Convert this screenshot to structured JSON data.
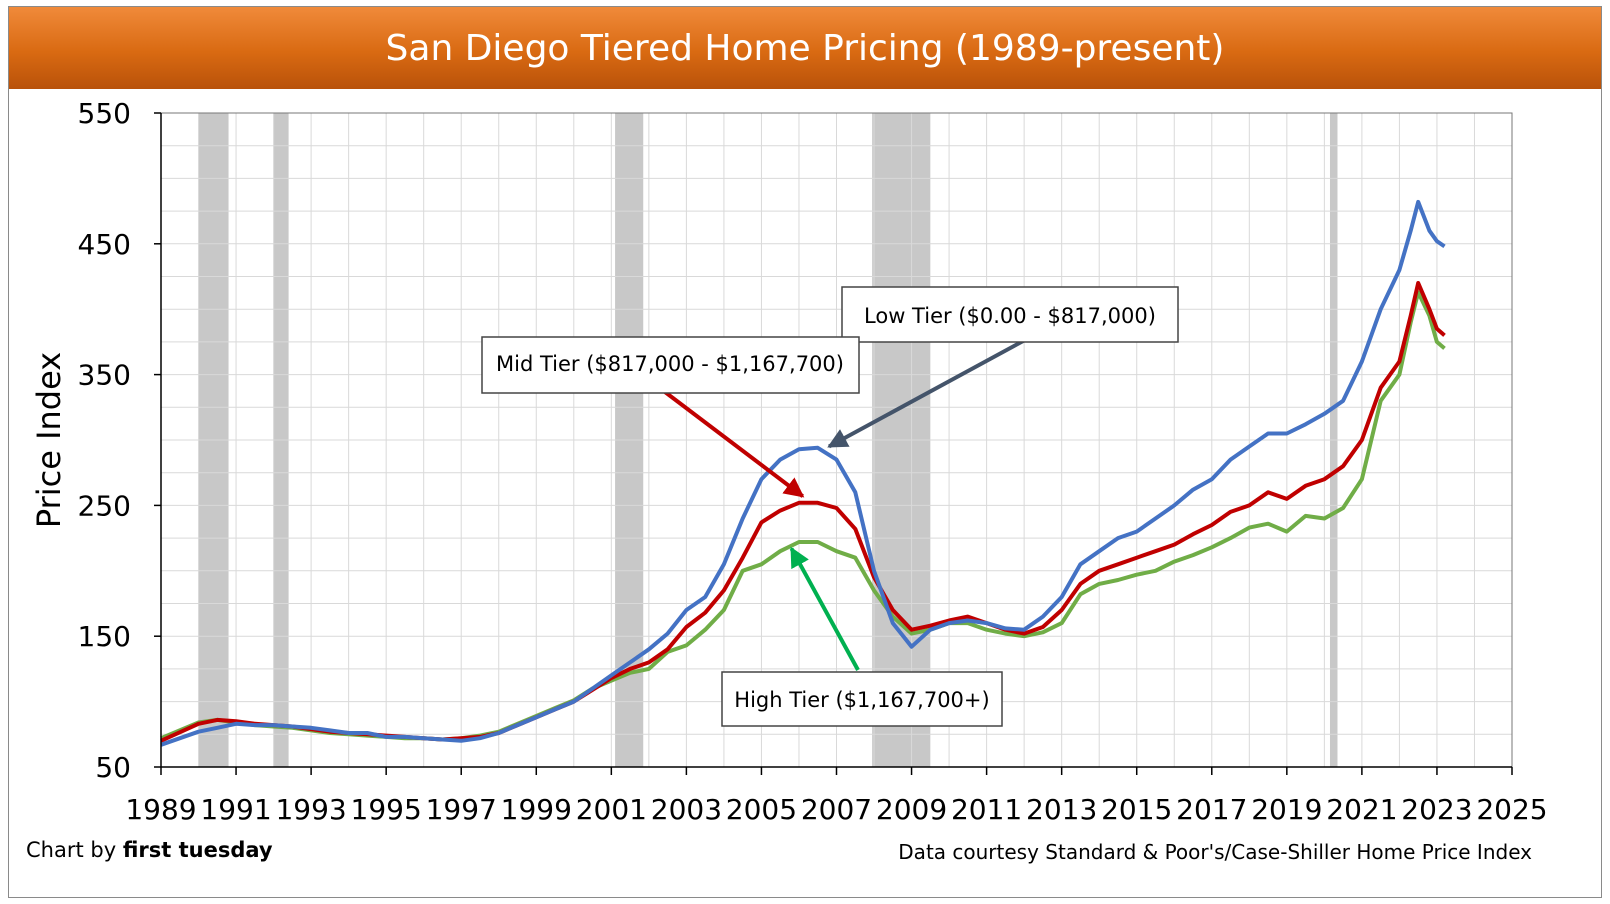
{
  "header": {
    "title": "San Diego Tiered Home Pricing (1989-present)"
  },
  "footer": {
    "credit_prefix": "Chart by ",
    "credit_brand": "first tuesday",
    "source": "Data courtesy Standard & Poor's/Case-Shiller Home Price Index"
  },
  "chart_data": {
    "type": "line",
    "title": "San Diego Tiered Home Pricing (1989-present)",
    "ylabel": "Price Index",
    "xlabel": "",
    "xlim": [
      1989,
      2025
    ],
    "ylim": [
      50,
      550
    ],
    "x_ticks": [
      "1989",
      "1991",
      "1993",
      "1995",
      "1997",
      "1999",
      "2001",
      "2003",
      "2005",
      "2007",
      "2009",
      "2011",
      "2013",
      "2015",
      "2017",
      "2019",
      "2021",
      "2023",
      "2025"
    ],
    "y_ticks": [
      50,
      150,
      250,
      350,
      450,
      550
    ],
    "grid": true,
    "recession_bands": [
      [
        1990.0,
        1990.8
      ],
      [
        1992.0,
        1992.4
      ],
      [
        2001.1,
        2001.85
      ],
      [
        2007.95,
        2009.5
      ],
      [
        2020.15,
        2020.35
      ]
    ],
    "series": [
      {
        "name": "Low Tier ($0.00 - $817,000)",
        "color": "#4472c4",
        "x": [
          1989,
          1990,
          1990.5,
          1991,
          1991.5,
          1992,
          1992.5,
          1993,
          1993.5,
          1994,
          1994.5,
          1995,
          1995.5,
          1996,
          1996.5,
          1997,
          1997.5,
          1998,
          1998.5,
          1999,
          1999.5,
          2000,
          2000.5,
          2001,
          2001.5,
          2002,
          2002.5,
          2003,
          2003.5,
          2004,
          2004.5,
          2005,
          2005.5,
          2006,
          2006.5,
          2007,
          2007.5,
          2008,
          2008.5,
          2009,
          2009.5,
          2010,
          2010.5,
          2011,
          2011.5,
          2012,
          2012.5,
          2013,
          2013.5,
          2014,
          2014.5,
          2015,
          2015.5,
          2016,
          2016.5,
          2017,
          2017.5,
          2018,
          2018.5,
          2019,
          2019.5,
          2020,
          2020.5,
          2021,
          2021.5,
          2022,
          2022.3,
          2022.5,
          2022.8,
          2023,
          2023.2
        ],
        "values": [
          67,
          77,
          80,
          83,
          82,
          82,
          81,
          80,
          78,
          76,
          76,
          73,
          73,
          72,
          71,
          70,
          72,
          76,
          82,
          88,
          94,
          100,
          110,
          120,
          130,
          140,
          152,
          170,
          180,
          205,
          240,
          270,
          285,
          293,
          294,
          285,
          260,
          200,
          160,
          142,
          155,
          160,
          162,
          160,
          156,
          155,
          165,
          180,
          205,
          215,
          225,
          230,
          240,
          250,
          262,
          270,
          285,
          295,
          305,
          305,
          312,
          320,
          330,
          360,
          400,
          430,
          460,
          482,
          460,
          452,
          448
        ]
      },
      {
        "name": "Mid Tier ($817,000 - $1,167,700)",
        "color": "#c00000",
        "x": [
          1989,
          1990,
          1990.5,
          1991,
          1991.5,
          1992,
          1992.5,
          1993,
          1993.5,
          1994,
          1994.5,
          1995,
          1995.5,
          1996,
          1996.5,
          1997,
          1997.5,
          1998,
          1998.5,
          1999,
          1999.5,
          2000,
          2000.5,
          2001,
          2001.5,
          2002,
          2002.5,
          2003,
          2003.5,
          2004,
          2004.5,
          2005,
          2005.5,
          2006,
          2006.5,
          2007,
          2007.5,
          2008,
          2008.5,
          2009,
          2009.5,
          2010,
          2010.5,
          2011,
          2011.5,
          2012,
          2012.5,
          2013,
          2013.5,
          2014,
          2014.5,
          2015,
          2015.5,
          2016,
          2016.5,
          2017,
          2017.5,
          2018,
          2018.5,
          2019,
          2019.5,
          2020,
          2020.5,
          2021,
          2021.5,
          2022,
          2022.3,
          2022.5,
          2022.8,
          2023,
          2023.2
        ],
        "values": [
          70,
          83,
          86,
          85,
          83,
          82,
          81,
          79,
          77,
          76,
          75,
          74,
          73,
          72,
          71,
          72,
          73,
          76,
          82,
          88,
          94,
          100,
          109,
          118,
          125,
          130,
          140,
          157,
          168,
          185,
          210,
          237,
          246,
          252,
          252,
          248,
          232,
          195,
          170,
          155,
          158,
          162,
          165,
          160,
          155,
          152,
          157,
          170,
          190,
          200,
          205,
          210,
          215,
          220,
          228,
          235,
          245,
          250,
          260,
          255,
          265,
          270,
          280,
          300,
          340,
          360,
          395,
          420,
          400,
          385,
          380
        ]
      },
      {
        "name": "High Tier ($1,167,700+)",
        "color": "#70ad47",
        "x": [
          1989,
          1990,
          1990.5,
          1991,
          1991.5,
          1992,
          1992.5,
          1993,
          1993.5,
          1994,
          1994.5,
          1995,
          1995.5,
          1996,
          1996.5,
          1997,
          1997.5,
          1998,
          1998.5,
          1999,
          1999.5,
          2000,
          2000.5,
          2001,
          2001.5,
          2002,
          2002.5,
          2003,
          2003.5,
          2004,
          2004.5,
          2005,
          2005.5,
          2006,
          2006.5,
          2007,
          2007.5,
          2008,
          2008.5,
          2009,
          2009.5,
          2010,
          2010.5,
          2011,
          2011.5,
          2012,
          2012.5,
          2013,
          2013.5,
          2014,
          2014.5,
          2015,
          2015.5,
          2016,
          2016.5,
          2017,
          2017.5,
          2018,
          2018.5,
          2019,
          2019.5,
          2020,
          2020.5,
          2021,
          2021.5,
          2022,
          2022.3,
          2022.5,
          2022.8,
          2023,
          2023.2
        ],
        "values": [
          72,
          84,
          86,
          84,
          82,
          81,
          80,
          78,
          76,
          75,
          74,
          73,
          72,
          72,
          71,
          72,
          74,
          77,
          83,
          89,
          95,
          101,
          110,
          116,
          122,
          125,
          138,
          143,
          155,
          170,
          200,
          205,
          215,
          222,
          222,
          215,
          210,
          185,
          165,
          152,
          155,
          160,
          160,
          155,
          152,
          150,
          153,
          160,
          182,
          190,
          193,
          197,
          200,
          207,
          212,
          218,
          225,
          233,
          236,
          230,
          242,
          240,
          248,
          270,
          330,
          350,
          390,
          413,
          395,
          375,
          370
        ]
      }
    ],
    "annotations": [
      {
        "text": "Low Tier ($0.00 - $817,000)",
        "target": [
          2006.8,
          295
        ]
      },
      {
        "text": "Mid Tier ($817,000 - $1,167,700)",
        "target": [
          2006.1,
          257
        ]
      },
      {
        "text": "High Tier ($1,167,700+)",
        "target": [
          2005.8,
          217
        ]
      }
    ]
  }
}
